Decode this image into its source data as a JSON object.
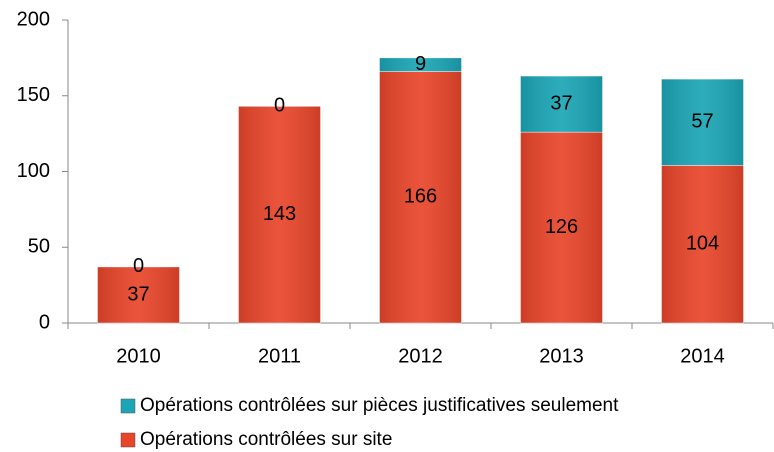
{
  "chart_data": {
    "type": "stacked_bar",
    "categories": [
      "2010",
      "2011",
      "2012",
      "2013",
      "2014"
    ],
    "series": [
      {
        "name": "Opérations contrôlées sur site",
        "color": "#e8452a",
        "values": [
          37,
          143,
          166,
          126,
          104
        ]
      },
      {
        "name": "Opérations contrôlées sur pièces justificatives seulement",
        "color": "#1ba5b5",
        "values": [
          0,
          0,
          9,
          37,
          57
        ]
      }
    ],
    "ylim": [
      0,
      200
    ],
    "yticks": [
      0,
      50,
      100,
      150,
      200
    ],
    "grid": false,
    "legend": "bottom"
  }
}
